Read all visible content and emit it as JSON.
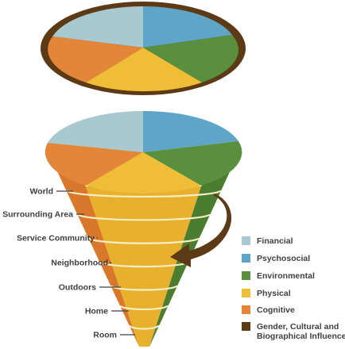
{
  "colors": {
    "financial": "#a8c9cf",
    "psychosocial": "#5fa5c7",
    "environmental": "#5a8f3d",
    "physical": "#f0bd37",
    "cognitive": "#e3863a",
    "influences": "#5c3a16",
    "label_text": "#404040"
  },
  "levels": [
    {
      "label": "World"
    },
    {
      "label": "Surrounding Area"
    },
    {
      "label": "Service Community"
    },
    {
      "label": "Neighborhood"
    },
    {
      "label": "Outdoors"
    },
    {
      "label": "Home"
    },
    {
      "label": "Room"
    }
  ],
  "legend": [
    {
      "key": "financial",
      "lines": [
        "Financial"
      ]
    },
    {
      "key": "psychosocial",
      "lines": [
        "Psychosocial"
      ]
    },
    {
      "key": "environmental",
      "lines": [
        "Environmental"
      ]
    },
    {
      "key": "physical",
      "lines": [
        "Physical"
      ]
    },
    {
      "key": "cognitive",
      "lines": [
        "Cognitive"
      ]
    },
    {
      "key": "influences",
      "lines": [
        "Gender, Cultural and",
        "Biographical Influences"
      ]
    }
  ]
}
